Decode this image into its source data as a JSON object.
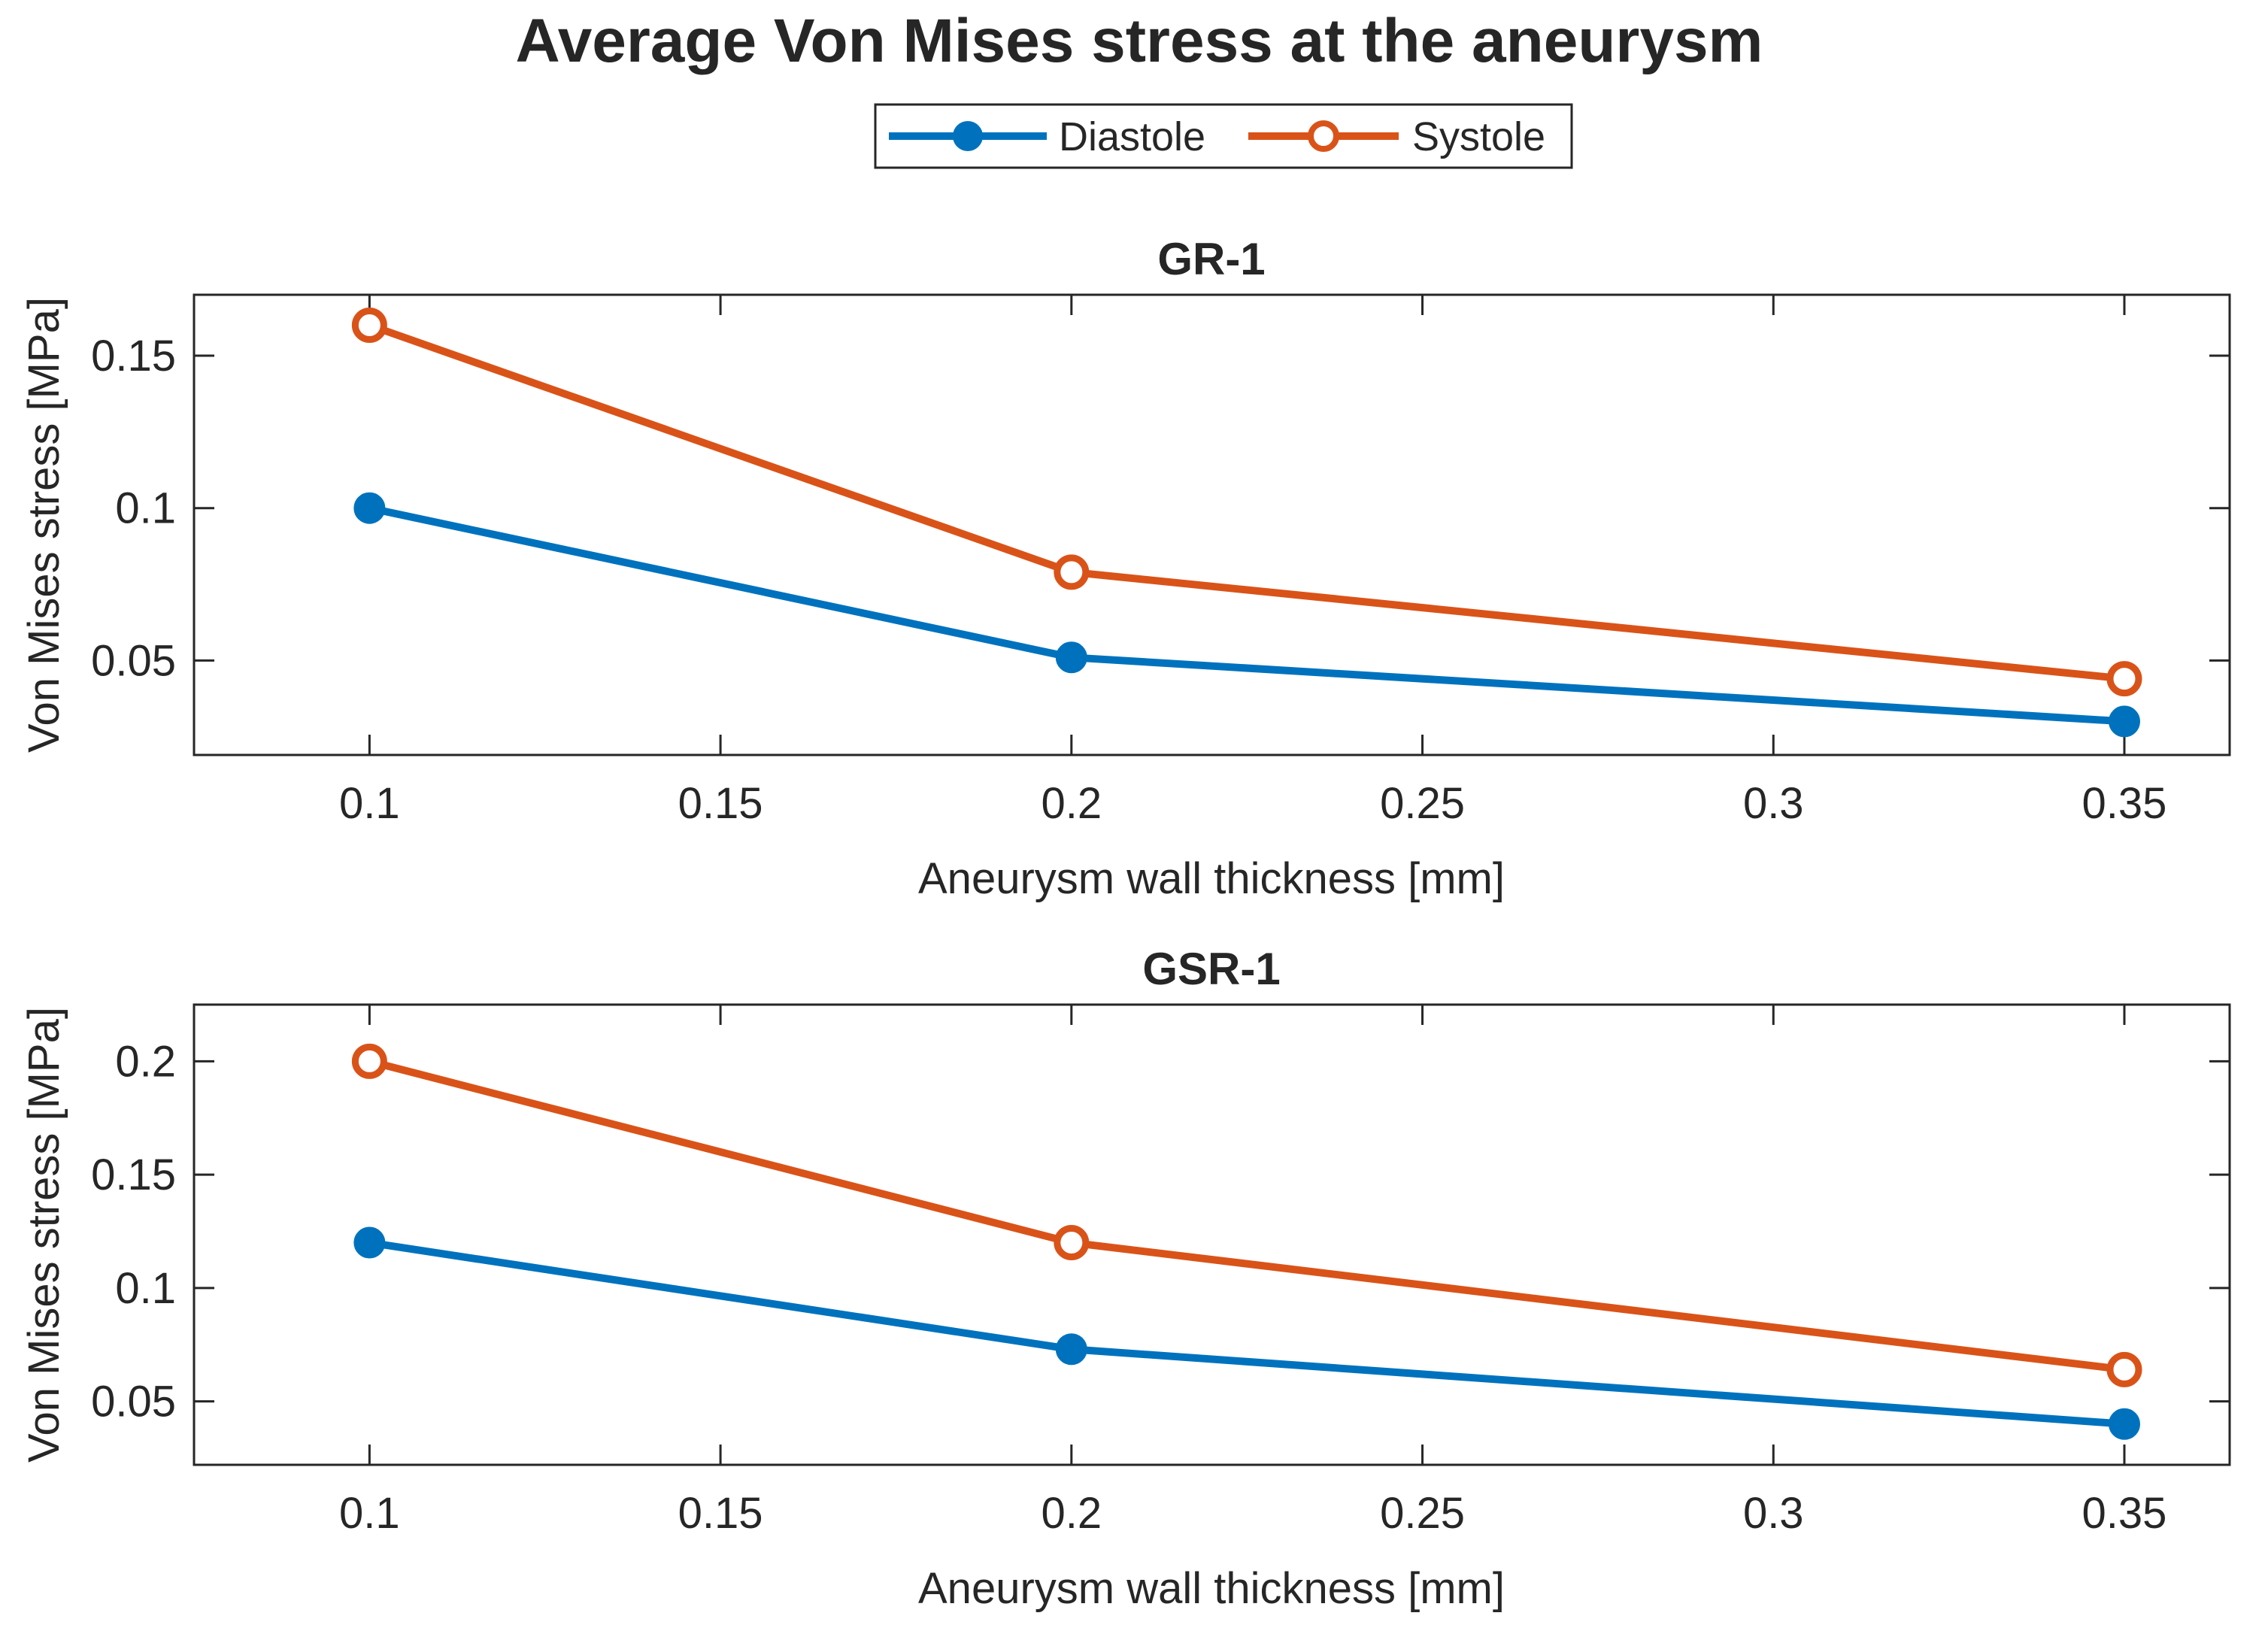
{
  "figure_title": "Average Von Mises stress at the aneurysm",
  "legend": {
    "entries": [
      {
        "label": "Diastole",
        "color": "#0072BD",
        "marker": "filled-circle"
      },
      {
        "label": "Systole",
        "color": "#D95319",
        "marker": "open-circle"
      }
    ]
  },
  "chart_data": [
    {
      "type": "line",
      "title": "GR-1",
      "xlabel": "Aneurysm wall thickness [mm]",
      "ylabel": "Von Mises stress [MPa]",
      "xlim": [
        0.075,
        0.365
      ],
      "ylim": [
        0.019,
        0.17
      ],
      "xticks": [
        0.1,
        0.15,
        0.2,
        0.25,
        0.3,
        0.35
      ],
      "xtick_labels": [
        "0.1",
        "0.15",
        "0.2",
        "0.25",
        "0.3",
        "0.35"
      ],
      "yticks": [
        0.05,
        0.1,
        0.15
      ],
      "ytick_labels": [
        "0.05",
        "0.1",
        "0.15"
      ],
      "x": [
        0.1,
        0.2,
        0.35
      ],
      "series": [
        {
          "name": "Diastole",
          "values": [
            0.1,
            0.051,
            0.03
          ],
          "color": "#0072BD",
          "marker": "filled"
        },
        {
          "name": "Systole",
          "values": [
            0.16,
            0.079,
            0.044
          ],
          "color": "#D95319",
          "marker": "open"
        }
      ],
      "grid": false
    },
    {
      "type": "line",
      "title": "GSR-1",
      "xlabel": "Aneurysm wall thickness [mm]",
      "ylabel": "Von Mises stress [MPa]",
      "xlim": [
        0.075,
        0.365
      ],
      "ylim": [
        0.022,
        0.225
      ],
      "xticks": [
        0.1,
        0.15,
        0.2,
        0.25,
        0.3,
        0.35
      ],
      "xtick_labels": [
        "0.1",
        "0.15",
        "0.2",
        "0.25",
        "0.3",
        "0.35"
      ],
      "yticks": [
        0.05,
        0.1,
        0.15,
        0.2
      ],
      "ytick_labels": [
        "0.05",
        "0.1",
        "0.15",
        "0.2"
      ],
      "x": [
        0.1,
        0.2,
        0.35
      ],
      "series": [
        {
          "name": "Diastole",
          "values": [
            0.12,
            0.073,
            0.04
          ],
          "color": "#0072BD",
          "marker": "filled"
        },
        {
          "name": "Systole",
          "values": [
            0.2,
            0.12,
            0.064
          ],
          "color": "#D95319",
          "marker": "open"
        }
      ],
      "grid": false
    }
  ]
}
